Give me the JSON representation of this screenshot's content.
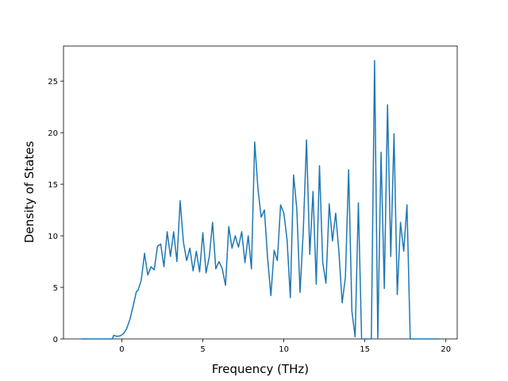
{
  "chart_data": {
    "type": "line",
    "xlabel": "Frequency (THz)",
    "ylabel": "Density of States",
    "x": [
      -2.5,
      -0.6,
      -0.5,
      -0.3,
      -0.1,
      0.1,
      0.3,
      0.5,
      0.7,
      0.9,
      1.0,
      1.2,
      1.4,
      1.6,
      1.8,
      2.0,
      2.2,
      2.4,
      2.6,
      2.8,
      3.0,
      3.2,
      3.4,
      3.6,
      3.8,
      4.0,
      4.2,
      4.4,
      4.6,
      4.8,
      5.0,
      5.2,
      5.4,
      5.6,
      5.8,
      6.0,
      6.2,
      6.4,
      6.6,
      6.8,
      7.0,
      7.2,
      7.4,
      7.6,
      7.8,
      8.0,
      8.2,
      8.4,
      8.6,
      8.8,
      9.0,
      9.2,
      9.4,
      9.6,
      9.8,
      10.0,
      10.2,
      10.4,
      10.6,
      10.8,
      11.0,
      11.2,
      11.4,
      11.6,
      11.8,
      12.0,
      12.2,
      12.4,
      12.6,
      12.8,
      13.0,
      13.2,
      13.4,
      13.6,
      13.8,
      14.0,
      14.2,
      14.4,
      14.6,
      14.8,
      15.0,
      15.2,
      15.4,
      15.6,
      15.8,
      16.0,
      16.2,
      16.4,
      16.6,
      16.8,
      17.0,
      17.2,
      17.4,
      17.6,
      17.8,
      18.0,
      19.6
    ],
    "series": [
      {
        "color": "#1f77b4",
        "values": [
          0,
          0,
          0.35,
          0.25,
          0.3,
          0.5,
          1.0,
          1.9,
          3.2,
          4.6,
          4.7,
          5.7,
          8.3,
          6.2,
          7.0,
          6.7,
          9.0,
          9.2,
          7.0,
          10.4,
          8.0,
          10.4,
          7.5,
          13.4,
          9.4,
          7.6,
          8.8,
          6.6,
          8.5,
          6.5,
          10.3,
          6.4,
          8.0,
          11.3,
          6.8,
          7.5,
          6.8,
          5.2,
          10.9,
          8.8,
          10.0,
          8.9,
          10.4,
          7.4,
          10.0,
          6.8,
          19.1,
          14.6,
          11.8,
          12.5,
          7.8,
          4.2,
          8.6,
          7.6,
          13.0,
          12.2,
          9.6,
          4.0,
          15.9,
          12.6,
          4.5,
          10.5,
          19.3,
          8.2,
          14.3,
          5.3,
          16.8,
          7.4,
          5.4,
          13.1,
          9.5,
          12.2,
          8.4,
          3.5,
          6.0,
          16.4,
          2.7,
          0.2,
          13.2,
          0,
          0,
          0,
          0,
          27,
          0,
          18.1,
          4.9,
          22.7,
          8.0,
          19.9,
          4.3,
          11.3,
          8.5,
          13.0,
          0,
          0,
          0
        ]
      }
    ],
    "xlim": [
      -3.6,
      20.7
    ],
    "xticks": [
      0,
      5,
      10,
      15,
      20
    ],
    "ylim": [
      0,
      28.4
    ],
    "yticks": [
      0,
      5,
      10,
      15,
      20,
      25
    ]
  }
}
